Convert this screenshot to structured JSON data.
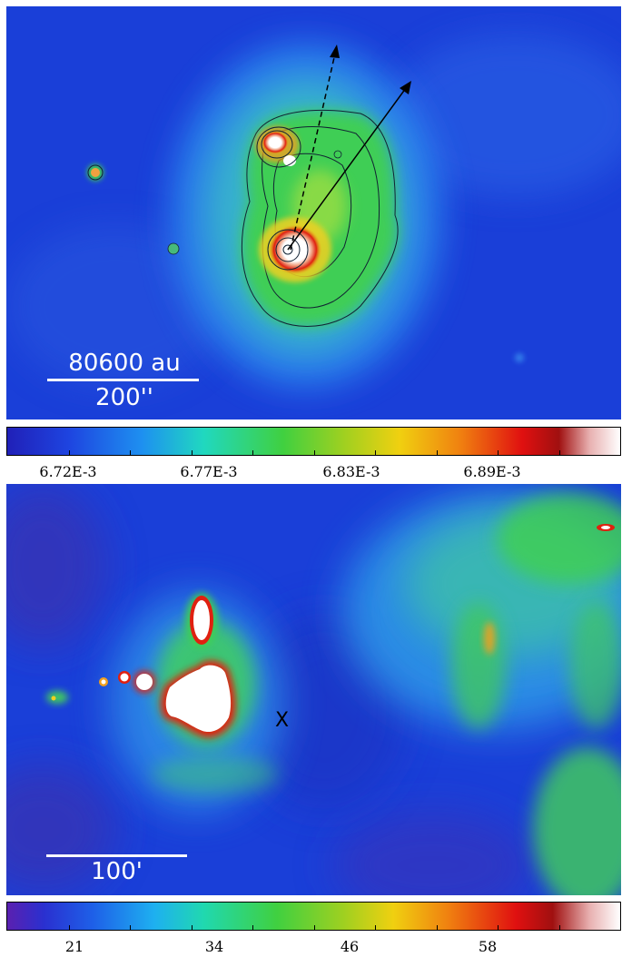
{
  "top_panel": {
    "scale_bar": {
      "upper": "80600 au",
      "lower": "200''"
    },
    "colorbar_ticks": [
      "6.72E-3",
      "6.77E-3",
      "6.83E-3",
      "6.89E-3"
    ]
  },
  "bottom_panel": {
    "scale_bar": {
      "label": "100'"
    },
    "marker": "X",
    "colorbar_ticks": [
      "21",
      "34",
      "46",
      "58"
    ]
  },
  "colors": {
    "background_blue": "#1a3fd8",
    "deep_blue": "#1428c8",
    "emission_green": "#3fd24a",
    "hot_red": "#e02010",
    "saturated_white": "#ffffff"
  }
}
